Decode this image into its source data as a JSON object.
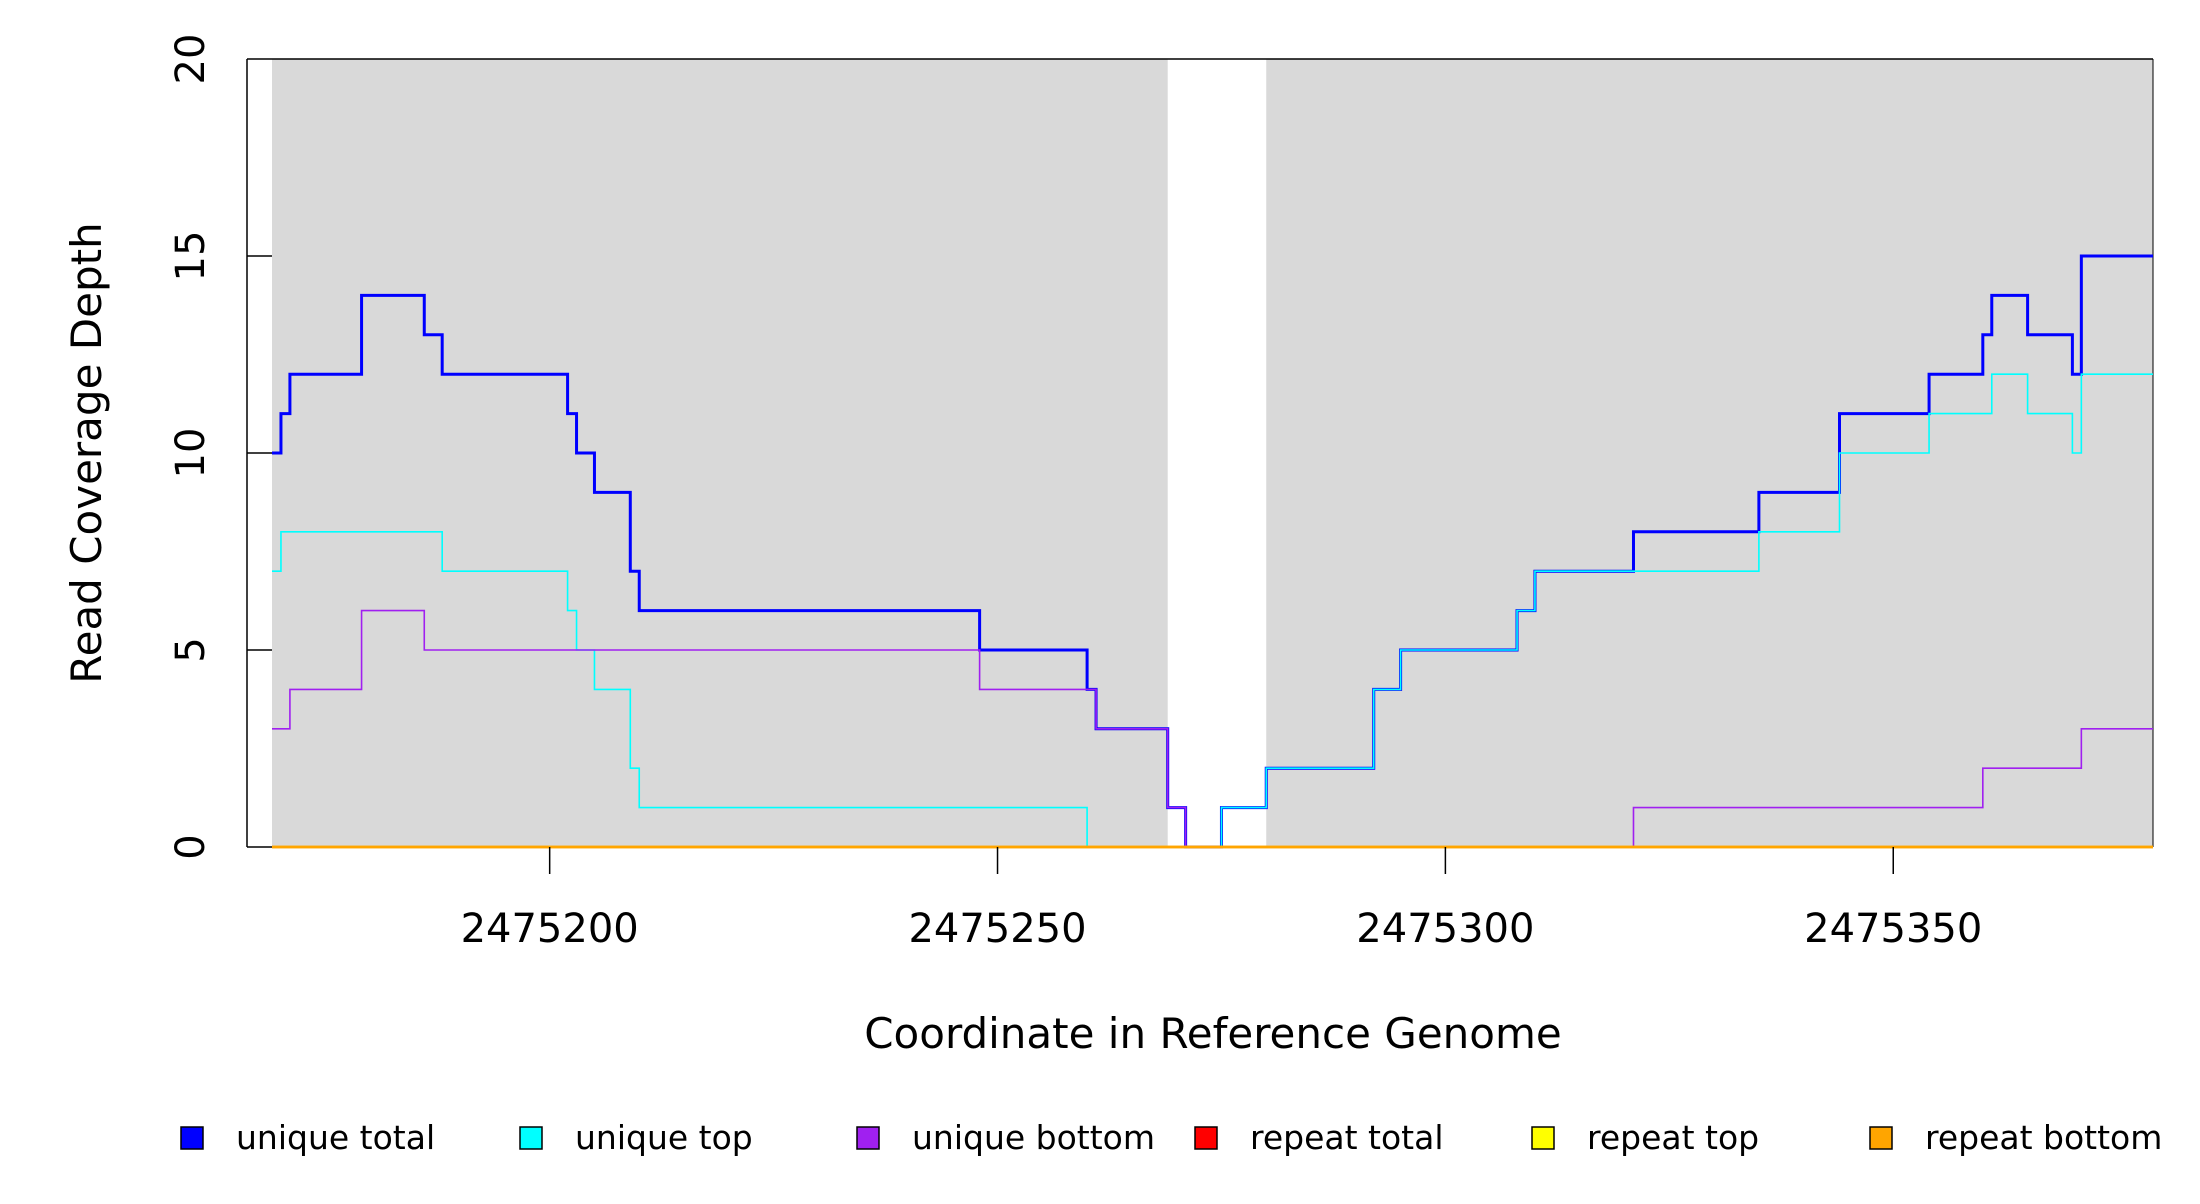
{
  "chart_data": {
    "type": "line",
    "subtype": "step",
    "title": "",
    "xlabel": "Coordinate in Reference Genome",
    "ylabel": "Read Coverage Depth",
    "xlim": [
      2475169,
      2475379
    ],
    "ylim": [
      0,
      20
    ],
    "xticks": [
      2475200,
      2475250,
      2475300,
      2475350
    ],
    "xtick_labels": [
      "2475200",
      "2475250",
      "2475300",
      "2475350"
    ],
    "yticks": [
      0,
      5,
      10,
      15,
      20
    ],
    "ytick_labels": [
      "0",
      "5",
      "10",
      "15",
      "20"
    ],
    "shaded_regions": [
      [
        2475169,
        2475269
      ],
      [
        2475280,
        2475379
      ]
    ],
    "shade_color": "#d9d9d9",
    "legend_position": "bottom",
    "series": [
      {
        "name": "unique total",
        "color": "#0000ff",
        "steps": [
          [
            2475169,
            10
          ],
          [
            2475170,
            11
          ],
          [
            2475171,
            12
          ],
          [
            2475179,
            14
          ],
          [
            2475186,
            13
          ],
          [
            2475188,
            12
          ],
          [
            2475202,
            11
          ],
          [
            2475203,
            10
          ],
          [
            2475205,
            9
          ],
          [
            2475209,
            7
          ],
          [
            2475210,
            6
          ],
          [
            2475248,
            5
          ],
          [
            2475260,
            4
          ],
          [
            2475261,
            3
          ],
          [
            2475269,
            1
          ],
          [
            2475271,
            0
          ],
          [
            2475275,
            1
          ],
          [
            2475280,
            2
          ],
          [
            2475292,
            4
          ],
          [
            2475295,
            5
          ],
          [
            2475308,
            6
          ],
          [
            2475310,
            7
          ],
          [
            2475321,
            8
          ],
          [
            2475335,
            9
          ],
          [
            2475344,
            11
          ],
          [
            2475354,
            12
          ],
          [
            2475360,
            13
          ],
          [
            2475361,
            14
          ],
          [
            2475365,
            13
          ],
          [
            2475370,
            12
          ],
          [
            2475371,
            15
          ]
        ]
      },
      {
        "name": "unique top",
        "color": "#00ffff",
        "steps": [
          [
            2475169,
            7
          ],
          [
            2475170,
            8
          ],
          [
            2475188,
            7
          ],
          [
            2475202,
            6
          ],
          [
            2475203,
            5
          ],
          [
            2475205,
            4
          ],
          [
            2475209,
            2
          ],
          [
            2475210,
            1
          ],
          [
            2475260,
            0
          ],
          [
            2475275,
            1
          ],
          [
            2475280,
            2
          ],
          [
            2475292,
            4
          ],
          [
            2475295,
            5
          ],
          [
            2475308,
            6
          ],
          [
            2475310,
            7
          ],
          [
            2475335,
            8
          ],
          [
            2475344,
            10
          ],
          [
            2475354,
            11
          ],
          [
            2475361,
            12
          ],
          [
            2475365,
            11
          ],
          [
            2475370,
            10
          ],
          [
            2475371,
            12
          ]
        ]
      },
      {
        "name": "unique bottom",
        "color": "#a020f0",
        "steps": [
          [
            2475169,
            3
          ],
          [
            2475171,
            4
          ],
          [
            2475179,
            6
          ],
          [
            2475186,
            5
          ],
          [
            2475248,
            4
          ],
          [
            2475261,
            3
          ],
          [
            2475269,
            1
          ],
          [
            2475271,
            0
          ],
          [
            2475321,
            1
          ],
          [
            2475360,
            2
          ],
          [
            2475371,
            3
          ]
        ]
      },
      {
        "name": "repeat total",
        "color": "#ff0000",
        "steps": [
          [
            2475169,
            0
          ]
        ]
      },
      {
        "name": "repeat top",
        "color": "#ffff00",
        "steps": [
          [
            2475169,
            0
          ]
        ]
      },
      {
        "name": "repeat bottom",
        "color": "#ffa500",
        "steps": [
          [
            2475169,
            0
          ]
        ]
      }
    ]
  }
}
